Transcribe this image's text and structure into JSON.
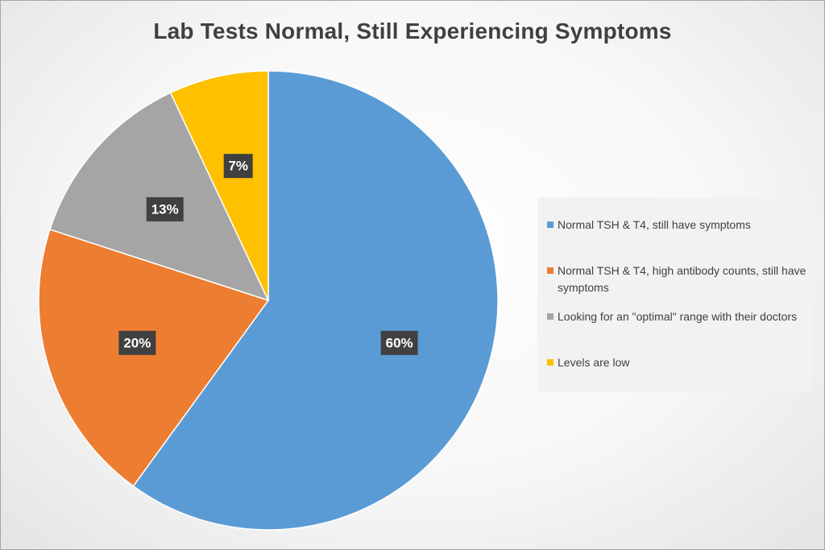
{
  "chart_data": {
    "type": "pie",
    "title": "Lab Tests Normal, Still Experiencing Symptoms",
    "slices": [
      {
        "label": "Normal TSH & T4, still have symptoms",
        "value": 60,
        "display": "60%",
        "color": "#5b9bd5"
      },
      {
        "label": "Normal TSH & T4, high antibody counts, still have symptoms",
        "value": 20,
        "display": "20%",
        "color": "#ed7d31"
      },
      {
        "label": "Looking for an \"optimal\" range with their doctors",
        "value": 13,
        "display": "13%",
        "color": "#a5a5a5"
      },
      {
        "label": "Levels are low",
        "value": 7,
        "display": "7%",
        "color": "#ffc000"
      }
    ],
    "legend_position": "right",
    "data_label_style": "dark-box"
  }
}
